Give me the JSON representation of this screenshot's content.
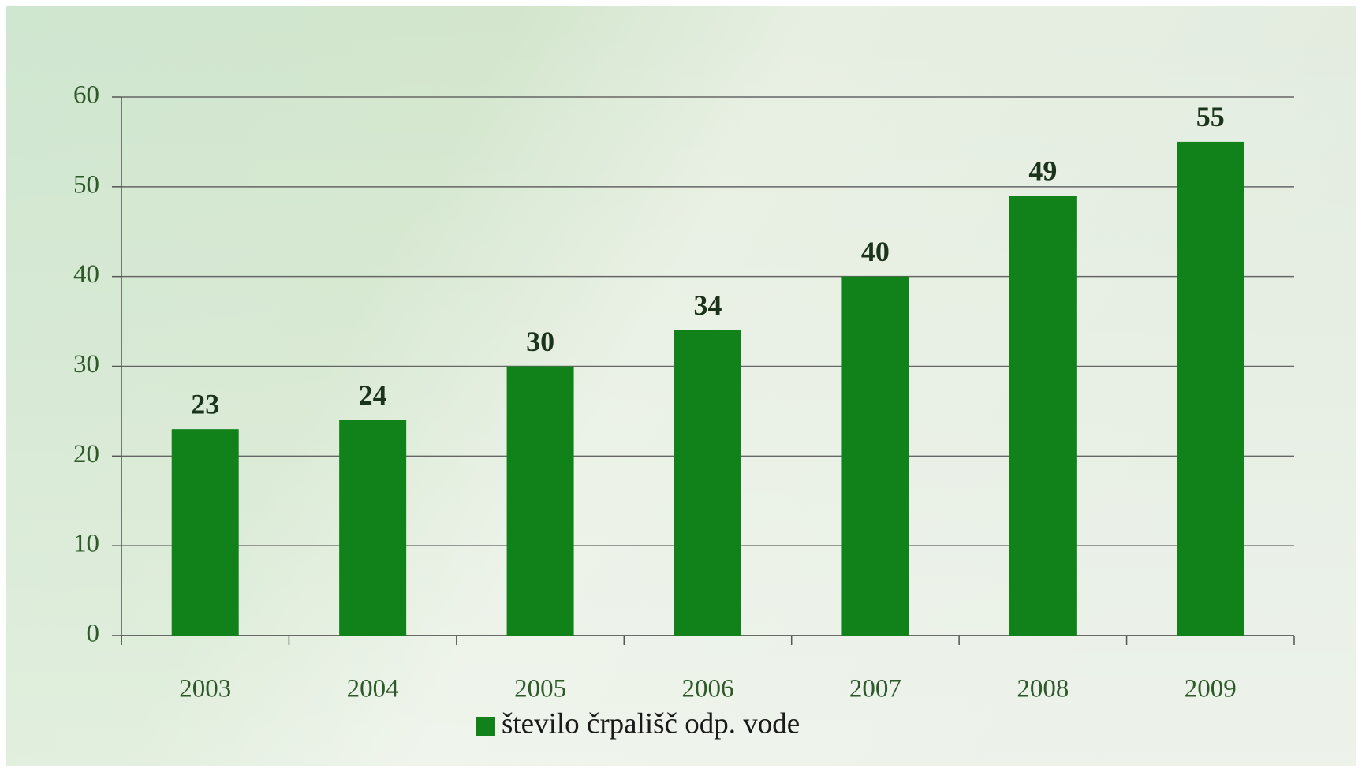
{
  "chart_data": {
    "type": "bar",
    "categories": [
      "2003",
      "2004",
      "2005",
      "2006",
      "2007",
      "2008",
      "2009"
    ],
    "series": [
      {
        "name": "število črpališč odp. vode",
        "color": "#118219",
        "values": [
          23,
          24,
          30,
          34,
          40,
          49,
          55
        ]
      }
    ],
    "ylim": [
      0,
      60
    ],
    "yticks": [
      0,
      10,
      20,
      30,
      40,
      50,
      60
    ],
    "grid": true,
    "legend": "bottom"
  }
}
